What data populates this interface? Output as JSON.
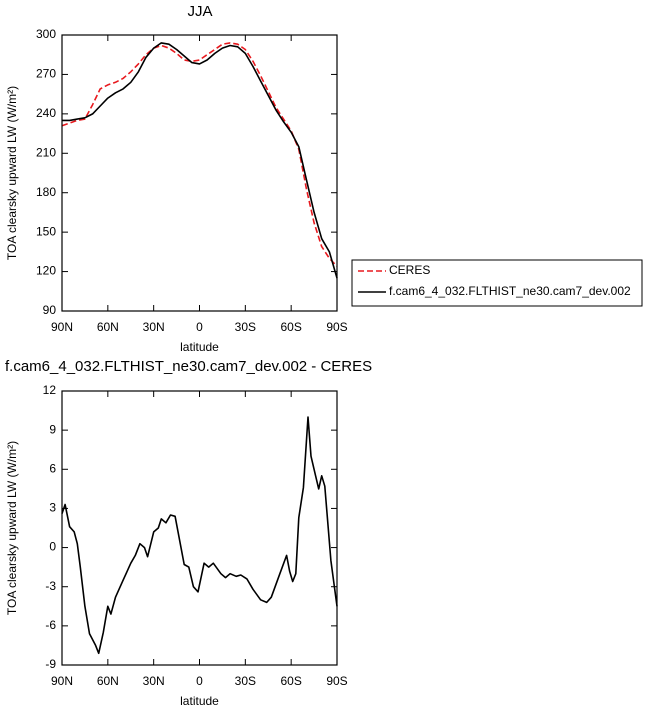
{
  "chart_data": [
    {
      "type": "line",
      "title": "JJA",
      "x_label": "latitude",
      "y_label": "TOA clearsky upward LW (W/m²)",
      "xlim": [
        90,
        -90
      ],
      "xticks": [
        {
          "value": 90,
          "label": "90N"
        },
        {
          "value": 60,
          "label": "60N"
        },
        {
          "value": 30,
          "label": "30N"
        },
        0,
        {
          "value": -30,
          "label": "30S"
        },
        {
          "value": -60,
          "label": "60S"
        },
        {
          "value": -90,
          "label": "90S"
        }
      ],
      "ylim": [
        90,
        300
      ],
      "yticks": [
        90,
        120,
        150,
        180,
        210,
        240,
        270,
        300
      ],
      "legend": "outside-right",
      "x": [
        90,
        85,
        80,
        75,
        70,
        65,
        60,
        55,
        50,
        45,
        40,
        35,
        30,
        25,
        20,
        15,
        10,
        5,
        0,
        -5,
        -10,
        -15,
        -20,
        -25,
        -30,
        -35,
        -40,
        -45,
        -50,
        -55,
        -60,
        -65,
        -70,
        -75,
        -80,
        -85,
        -90
      ],
      "series": [
        {
          "name": "CERES",
          "color": "#e8191e",
          "linestyle": "dashed",
          "values": [
            231,
            233,
            235,
            236,
            247,
            259,
            262,
            264,
            267,
            272,
            278,
            285,
            290,
            292,
            290,
            286,
            281,
            280,
            281,
            285,
            289,
            293,
            294,
            293,
            289,
            280,
            269,
            257,
            245,
            236,
            227,
            213,
            183,
            157,
            139,
            130,
            124
          ]
        },
        {
          "name": "f.cam6_4_032.FLTHIST_ne30.cam7_dev.002",
          "color": "#000000",
          "linestyle": "solid",
          "values": [
            235,
            235,
            236,
            237,
            240,
            246,
            252,
            256,
            259,
            264,
            272,
            283,
            290,
            294,
            293,
            289,
            284,
            279,
            278,
            281,
            286,
            290,
            292,
            291,
            286,
            276,
            265,
            254,
            243,
            234,
            226,
            215,
            190,
            165,
            145,
            135,
            115
          ]
        }
      ]
    },
    {
      "type": "line",
      "title": "f.cam6_4_032.FLTHIST_ne30.cam7_dev.002 - CERES",
      "x_label": "latitude",
      "y_label": "TOA clearsky upward LW (W/m²)",
      "xlim": [
        90,
        -90
      ],
      "xticks": [
        {
          "value": 90,
          "label": "90N"
        },
        {
          "value": 60,
          "label": "60N"
        },
        {
          "value": 30,
          "label": "30N"
        },
        0,
        {
          "value": -30,
          "label": "30S"
        },
        {
          "value": -60,
          "label": "60S"
        },
        {
          "value": -90,
          "label": "90S"
        }
      ],
      "ylim": [
        -9,
        12
      ],
      "yticks": [
        -9,
        -6,
        -3,
        0,
        3,
        6,
        9,
        12
      ],
      "color": "#000000",
      "x": [
        90,
        88,
        85,
        82,
        80,
        78,
        75,
        72,
        68,
        66,
        63,
        60,
        58,
        55,
        50,
        45,
        42,
        39,
        36,
        34,
        30,
        27,
        25,
        22,
        19,
        16,
        10,
        7,
        4,
        1,
        -3,
        -6,
        -9,
        -14,
        -17,
        -20,
        -24,
        -27,
        -31,
        -35,
        -40,
        -44,
        -47,
        -52,
        -57,
        -59,
        -61,
        -63,
        -65,
        -68,
        -71,
        -73,
        -76,
        -78,
        -80,
        -82,
        -86,
        -90
      ],
      "values": [
        2.6,
        3.3,
        1.6,
        1.2,
        0.3,
        -1.5,
        -4.5,
        -6.6,
        -7.5,
        -8.1,
        -6.5,
        -4.5,
        -5.1,
        -3.8,
        -2.5,
        -1.2,
        -0.6,
        0.3,
        0,
        -0.7,
        1.2,
        1.5,
        2.2,
        1.9,
        2.5,
        2.4,
        -1.3,
        -1.5,
        -3.0,
        -3.4,
        -1.2,
        -1.5,
        -1.2,
        -2.0,
        -2.3,
        -2.0,
        -2.2,
        -2.1,
        -2.4,
        -3.2,
        -4.0,
        -4.2,
        -3.8,
        -2.2,
        -0.6,
        -1.8,
        -2.6,
        -2.0,
        2.3,
        4.6,
        10.0,
        7.0,
        5.5,
        4.5,
        5.5,
        4.7,
        -1.0,
        -4.5
      ]
    }
  ]
}
